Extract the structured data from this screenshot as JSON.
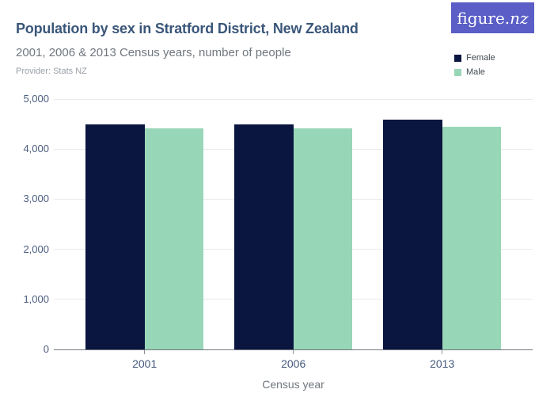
{
  "header": {
    "title": "Population by sex in Stratford District, New Zealand",
    "subtitle": "2001, 2006 & 2013 Census years, number of people",
    "provider": "Provider: Stats NZ"
  },
  "logo": {
    "text_main": "figure.",
    "text_accent": "nz",
    "background": "#5a5ec6",
    "color": "#ffffff"
  },
  "legend": {
    "items": [
      {
        "label": "Female",
        "color": "#0a1540"
      },
      {
        "label": "Male",
        "color": "#98d6b8"
      }
    ]
  },
  "chart_data": {
    "type": "bar",
    "title": "Population by sex in Stratford District, New Zealand",
    "subtitle": "2001, 2006 & 2013 Census years, number of people",
    "categories": [
      "2001",
      "2006",
      "2013"
    ],
    "series": [
      {
        "name": "Female",
        "color": "#0a1540",
        "values": [
          4500,
          4490,
          4590
        ]
      },
      {
        "name": "Male",
        "color": "#98d6b8",
        "values": [
          4410,
          4420,
          4440
        ]
      }
    ],
    "xlabel": "Census year",
    "ylabel": "",
    "ylim": [
      0,
      5000
    ],
    "yticks": [
      0,
      1000,
      2000,
      3000,
      4000,
      5000
    ],
    "ytick_labels": [
      "0",
      "1,000",
      "2,000",
      "3,000",
      "4,000",
      "5,000"
    ],
    "grid": true,
    "legend_position": "top-right",
    "colors": {
      "gridline": "#ebebeb",
      "axis_line": "#73787f",
      "tick_label": "#4c5d80"
    }
  }
}
